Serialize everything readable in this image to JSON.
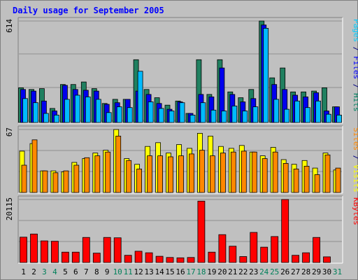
{
  "chart_data": {
    "type": "bar",
    "title": "Daily usage for September 2005",
    "x": [
      "1",
      "2",
      "3",
      "4",
      "5",
      "6",
      "7",
      "8",
      "9",
      "10",
      "11",
      "12",
      "13",
      "14",
      "15",
      "16",
      "17",
      "18",
      "19",
      "20",
      "21",
      "22",
      "23",
      "24",
      "25",
      "26",
      "27",
      "28",
      "29",
      "30",
      "31"
    ],
    "weekend_days": [
      "3",
      "4",
      "10",
      "11",
      "17",
      "18",
      "24",
      "25",
      "31"
    ],
    "panels": [
      {
        "name": "hits",
        "ymax": 614,
        "ymax_label": "614",
        "right_label": [
          {
            "text": "Pages",
            "color": "#00ccff"
          },
          {
            "text": " / ",
            "color": "#000080"
          },
          {
            "text": "Files",
            "color": "#0000ff"
          },
          {
            "text": " / ",
            "color": "#000080"
          },
          {
            "text": "Hits",
            "color": "#008060"
          }
        ],
        "series": [
          {
            "key": "hits",
            "color": "#208060",
            "values": [
              210,
              200,
              205,
              85,
              230,
              230,
              245,
              205,
              115,
              140,
              140,
              380,
              200,
              150,
              105,
              130,
              55,
              380,
              170,
              380,
              185,
              150,
              200,
              614,
              270,
              330,
              185,
              185,
              190,
              210,
              95
            ]
          },
          {
            "key": "files",
            "color": "#0000ee",
            "values": [
              200,
              190,
              130,
              70,
              225,
              200,
              195,
              190,
              110,
              120,
              140,
              190,
              170,
              115,
              80,
              125,
              55,
              170,
              155,
              330,
              170,
              125,
              145,
              590,
              230,
              200,
              165,
              155,
              180,
              70,
              95
            ]
          },
          {
            "key": "pages",
            "color": "#00bbff",
            "values": [
              145,
              120,
              55,
              45,
              140,
              165,
              155,
              140,
              60,
              95,
              90,
              310,
              125,
              85,
              70,
              120,
              45,
              120,
              75,
              70,
              100,
              70,
              95,
              570,
              140,
              80,
              130,
              90,
              130,
              50,
              45
            ]
          }
        ]
      },
      {
        "name": "visits",
        "ymax": 67,
        "ymax_label": "67",
        "right_label": [
          {
            "text": "Sites",
            "color": "#ff8800"
          },
          {
            "text": " / ",
            "color": "#000080"
          },
          {
            "text": "Visits",
            "color": "#ffff00"
          }
        ],
        "series": [
          {
            "key": "visits",
            "color": "#ffff00",
            "values": [
              44,
              52,
              23,
              23,
              22,
              32,
              36,
              42,
              45,
              67,
              36,
              30,
              49,
              53,
              42,
              51,
              47,
              63,
              60,
              49,
              47,
              50,
              43,
              39,
              48,
              35,
              30,
              34,
              26,
              42,
              24
            ]
          },
          {
            "key": "sites",
            "color": "#ff8800",
            "values": [
              29,
              56,
              23,
              21,
              23,
              29,
              37,
              39,
              43,
              60,
              34,
              25,
              39,
              39,
              38,
              39,
              41,
              45,
              39,
              42,
              43,
              44,
              43,
              36,
              43,
              31,
              25,
              28,
              19,
              40,
              26
            ]
          }
        ]
      },
      {
        "name": "kbytes",
        "ymax": 20115,
        "ymax_label": "20115",
        "right_label": [
          {
            "text": "KBytes",
            "color": "#ff0000"
          }
        ],
        "series": [
          {
            "key": "kbytes",
            "color": "#ff0000",
            "values": [
              8100,
              9100,
              6900,
              6800,
              3300,
              3300,
              8000,
              3000,
              8000,
              7900,
              2300,
              3600,
              3100,
              2000,
              1600,
              1500,
              1600,
              19600,
              3300,
              8900,
              5200,
              1900,
              9600,
              4900,
              8300,
              20115,
              2300,
              3100,
              8000,
              1800,
              0
            ]
          }
        ]
      }
    ],
    "grid": true,
    "legend": "right side, vertical"
  },
  "colors": {
    "background": "#c0c0c0",
    "title": "#0000ff",
    "weekday_label": "#000000",
    "weekend_label": "#00805a"
  }
}
